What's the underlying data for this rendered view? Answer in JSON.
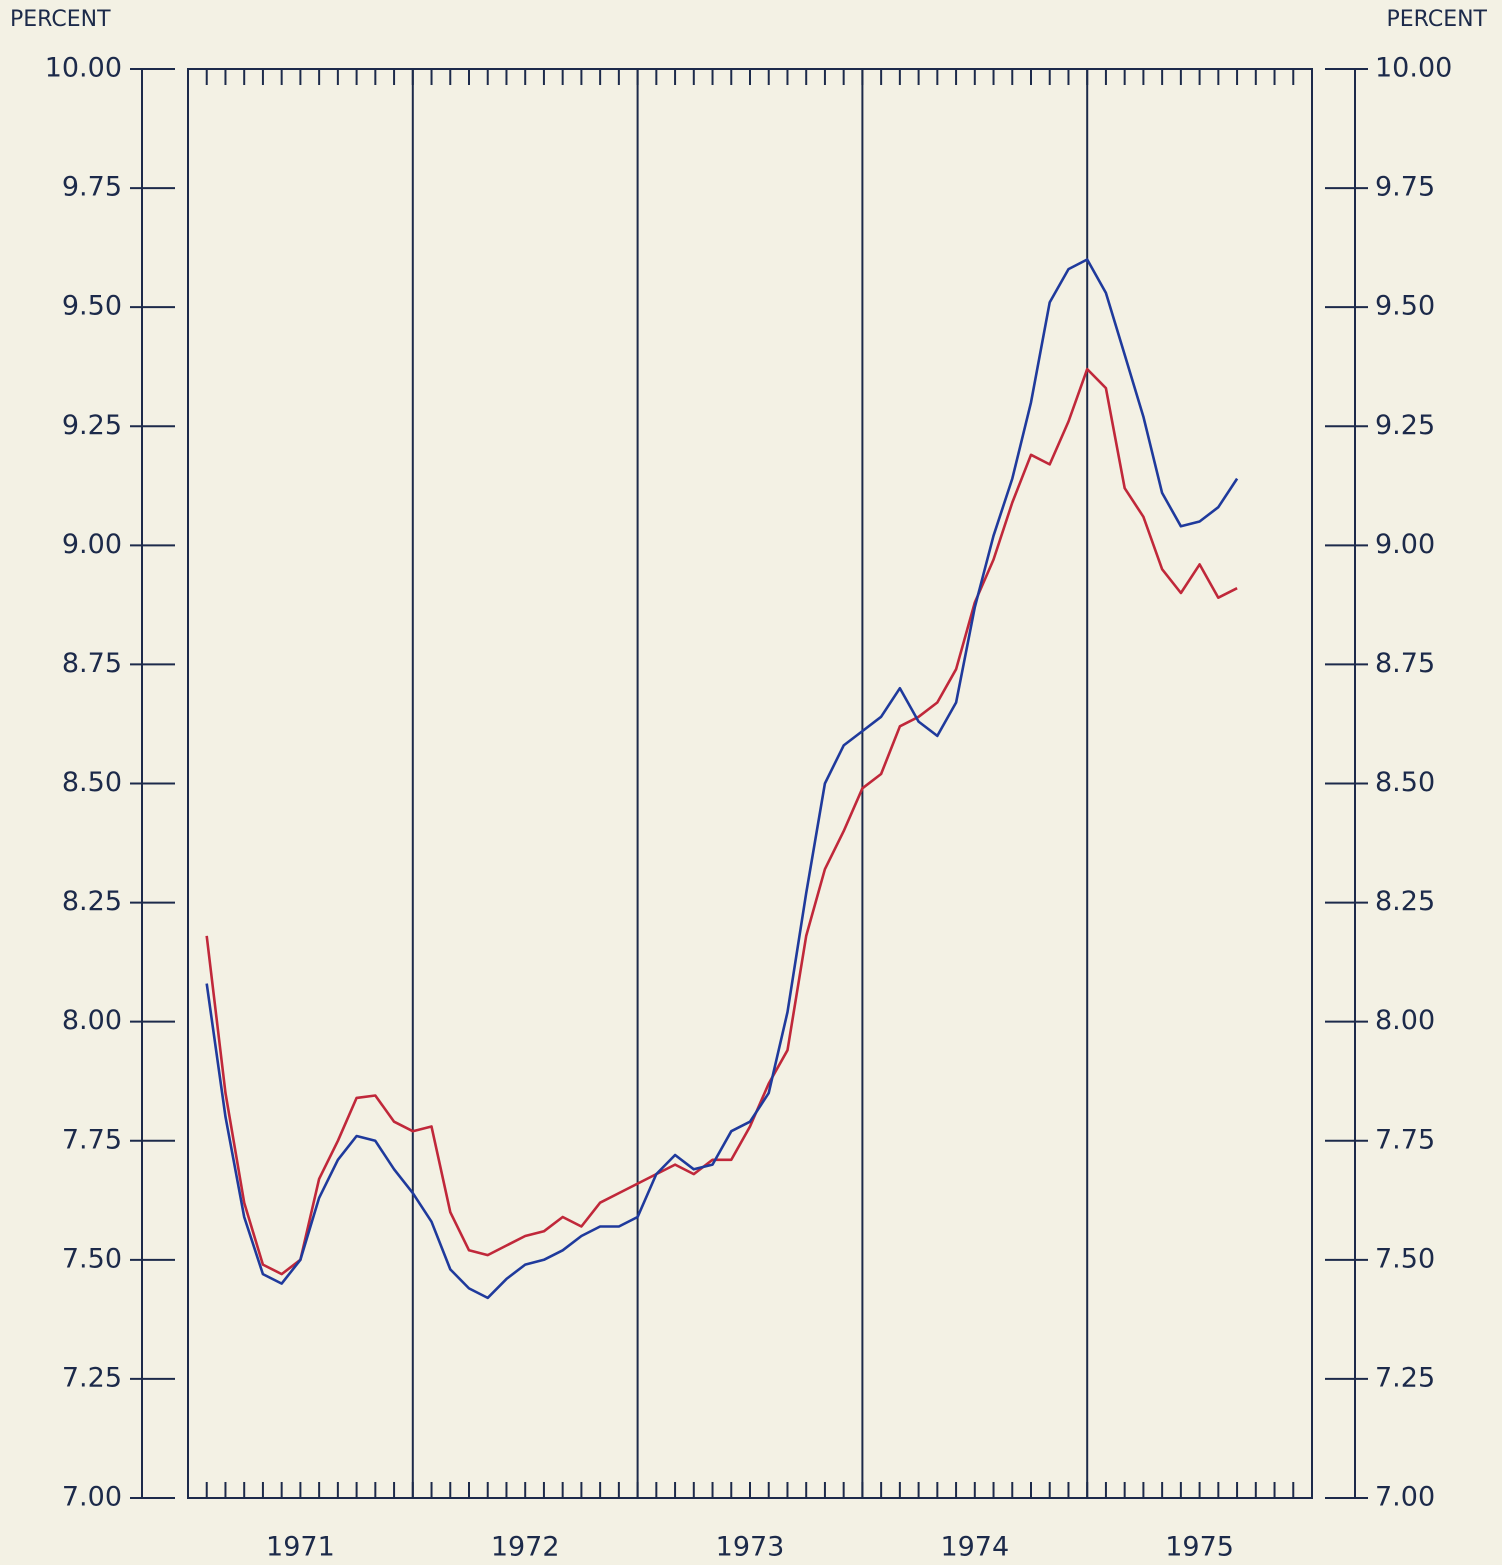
{
  "chart_data": {
    "type": "line",
    "y_label_left": "PERCENT",
    "y_label_right": "PERCENT",
    "xlim": [
      1971,
      1976
    ],
    "xticks": [
      {
        "value": 1971.5,
        "label": "1971"
      },
      {
        "value": 1972.5,
        "label": "1972"
      },
      {
        "value": 1973.5,
        "label": "1973"
      },
      {
        "value": 1974.5,
        "label": "1974"
      },
      {
        "value": 1975.5,
        "label": "1975"
      }
    ],
    "year_lines": [
      1972,
      1973,
      1974,
      1975
    ],
    "ylim": [
      7,
      10
    ],
    "yticks": [
      {
        "value": 10,
        "label": "10.00"
      },
      9.75,
      {
        "value": 9.5,
        "label": "9.50"
      },
      9.25,
      {
        "value": 9,
        "label": "9.00"
      },
      8.75,
      {
        "value": 8.5,
        "label": "8.50"
      },
      8.25,
      {
        "value": 8,
        "label": "8.00"
      },
      7.75,
      {
        "value": 7.5,
        "label": "7.50"
      },
      7.25,
      {
        "value": 7,
        "label": "7.00"
      }
    ],
    "x": [
      1971.083,
      1971.167,
      1971.25,
      1971.333,
      1971.417,
      1971.5,
      1971.583,
      1971.667,
      1971.75,
      1971.833,
      1971.917,
      1972.0,
      1972.083,
      1972.167,
      1972.25,
      1972.333,
      1972.417,
      1972.5,
      1972.583,
      1972.667,
      1972.75,
      1972.833,
      1972.917,
      1973.0,
      1973.083,
      1973.167,
      1973.25,
      1973.333,
      1973.417,
      1973.5,
      1973.583,
      1973.667,
      1973.75,
      1973.833,
      1973.917,
      1974.0,
      1974.083,
      1974.167,
      1974.25,
      1974.333,
      1974.417,
      1974.5,
      1974.583,
      1974.667,
      1974.75,
      1974.833,
      1974.917,
      1975.0,
      1975.083,
      1975.167,
      1975.25,
      1975.333,
      1975.417,
      1975.5,
      1975.583,
      1975.667
    ],
    "series": [
      {
        "color": "#c0283a",
        "values": [
          8.18,
          7.85,
          7.62,
          7.49,
          7.47,
          7.5,
          7.67,
          7.75,
          7.84,
          7.845,
          7.79,
          7.77,
          7.78,
          7.6,
          7.52,
          7.51,
          7.53,
          7.55,
          7.56,
          7.59,
          7.57,
          7.62,
          7.64,
          7.66,
          7.68,
          7.7,
          7.68,
          7.71,
          7.71,
          7.78,
          7.87,
          7.94,
          8.18,
          8.32,
          8.4,
          8.49,
          8.52,
          8.62,
          8.64,
          8.67,
          8.74,
          8.88,
          8.97,
          9.09,
          9.19,
          9.17,
          9.26,
          9.37,
          9.33,
          9.12,
          9.06,
          8.95,
          8.9,
          8.96,
          8.89,
          8.91
        ]
      },
      {
        "color": "#1f3a9c",
        "values": [
          8.08,
          7.8,
          7.59,
          7.47,
          7.45,
          7.5,
          7.63,
          7.71,
          7.76,
          7.75,
          7.69,
          7.64,
          7.58,
          7.48,
          7.44,
          7.42,
          7.46,
          7.49,
          7.5,
          7.52,
          7.55,
          7.57,
          7.57,
          7.59,
          7.68,
          7.72,
          7.69,
          7.7,
          7.77,
          7.79,
          7.85,
          8.02,
          8.27,
          8.5,
          8.58,
          8.61,
          8.64,
          8.7,
          8.63,
          8.6,
          8.67,
          8.87,
          9.02,
          9.14,
          9.3,
          9.51,
          9.58,
          9.6,
          9.53,
          9.4,
          9.27,
          9.11,
          9.04,
          9.05,
          9.08,
          9.14
        ]
      }
    ]
  }
}
